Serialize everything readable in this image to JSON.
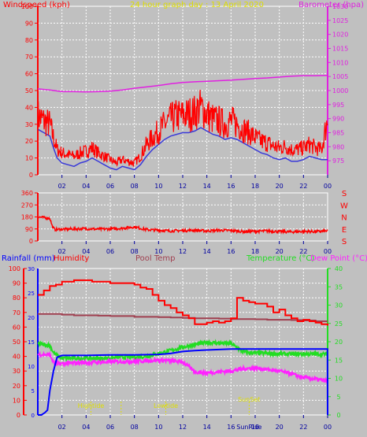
{
  "title": "24 hour graph day : 13 April 2020",
  "colors": {
    "background": "#c0c0c0",
    "windspeed": "#ff0000",
    "windgust": "#3a3ad8",
    "barometer": "#e020e0",
    "direction": "#ff0000",
    "humidity": "#ff0000",
    "pooltemp": "#a04050",
    "temperature": "#22dd22",
    "dewpoint": "#ff22ff",
    "rainfall": "#0000ff",
    "tide": "#e0e000"
  },
  "x_tick_labels": [
    "02",
    "04",
    "06",
    "08",
    "10",
    "12",
    "14",
    "16",
    "18",
    "20",
    "22",
    "00"
  ],
  "chart_data": [
    {
      "type": "line",
      "panel": "wind-barometer",
      "title": "24 hour graph day : 13 April 2020",
      "left_label": "Windspeed (kph)",
      "right_label": "Barometer (hpa)",
      "xlim": [
        0,
        24
      ],
      "ylim": [
        0,
        100
      ],
      "y2lim": [
        970,
        1030
      ],
      "yticks": [
        0,
        10,
        20,
        30,
        40,
        50,
        60,
        70,
        80,
        90,
        100
      ],
      "y2ticks": [
        975,
        980,
        985,
        990,
        995,
        1000,
        1005,
        1010,
        1015,
        1020,
        1025,
        1030
      ],
      "grid": true,
      "series": [
        {
          "name": "Windspeed (kph)",
          "axis": "left",
          "style": "noisy",
          "x": [
            0.0,
            0.5,
            1.0,
            1.3,
            1.6,
            2.0,
            2.5,
            3.0,
            3.5,
            4.0,
            4.5,
            5.0,
            5.5,
            6.0,
            6.5,
            7.0,
            7.5,
            8.0,
            8.5,
            9.0,
            9.5,
            10.0,
            10.5,
            11.0,
            11.5,
            12.0,
            12.5,
            13.0,
            13.5,
            14.0,
            14.5,
            15.0,
            15.5,
            16.0,
            16.5,
            17.0,
            17.5,
            18.0,
            18.5,
            19.0,
            19.5,
            20.0,
            20.5,
            21.0,
            21.5,
            22.0,
            22.5,
            23.0,
            23.5,
            24.0
          ],
          "y": [
            35,
            32,
            30,
            22,
            15,
            13,
            12,
            11,
            13,
            14,
            16,
            13,
            11,
            9,
            7,
            9,
            8,
            7,
            11,
            18,
            22,
            26,
            30,
            33,
            35,
            35,
            36,
            37,
            40,
            36,
            33,
            32,
            30,
            32,
            30,
            27,
            25,
            22,
            20,
            19,
            17,
            16,
            17,
            15,
            15,
            16,
            18,
            16,
            15,
            33
          ]
        },
        {
          "name": "Wind gust",
          "axis": "left",
          "style": "smooth",
          "x": [
            0.0,
            0.5,
            1.0,
            1.3,
            1.6,
            2.0,
            2.5,
            3.0,
            3.5,
            4.0,
            4.5,
            5.0,
            5.5,
            6.0,
            6.5,
            7.0,
            7.5,
            8.0,
            8.5,
            9.0,
            9.5,
            10.0,
            10.5,
            11.0,
            11.5,
            12.0,
            12.5,
            13.0,
            13.5,
            14.0,
            14.5,
            15.0,
            15.5,
            16.0,
            16.5,
            17.0,
            17.5,
            18.0,
            18.5,
            19.0,
            19.5,
            20.0,
            20.5,
            21.0,
            21.5,
            22.0,
            22.5,
            23.0,
            23.5,
            24.0
          ],
          "y": [
            27,
            25,
            23,
            16,
            10,
            7,
            6,
            5,
            7,
            8,
            10,
            8,
            6,
            4,
            3,
            5,
            4,
            3,
            6,
            11,
            15,
            18,
            21,
            23,
            24,
            25,
            25,
            26,
            28,
            26,
            24,
            23,
            21,
            22,
            21,
            19,
            17,
            15,
            13,
            12,
            10,
            9,
            10,
            8,
            8,
            9,
            11,
            10,
            9,
            9
          ]
        },
        {
          "name": "Barometer (hpa)",
          "axis": "right",
          "style": "smooth",
          "x": [
            0,
            1,
            2,
            3,
            4,
            5,
            6,
            7,
            8,
            9,
            10,
            11,
            12,
            13,
            14,
            15,
            16,
            17,
            18,
            19,
            20,
            21,
            22,
            23,
            24
          ],
          "y": [
            1000.6,
            1000.2,
            999.6,
            999.6,
            999.5,
            999.6,
            999.8,
            1000.2,
            1000.8,
            1001.3,
            1001.8,
            1002.4,
            1002.9,
            1003.1,
            1003.3,
            1003.5,
            1003.7,
            1004.0,
            1004.3,
            1004.5,
            1004.8,
            1005.1,
            1005.3,
            1005.3,
            1005.4
          ]
        }
      ]
    },
    {
      "type": "scatter",
      "panel": "wind-direction",
      "xlim": [
        0,
        24
      ],
      "ylim": [
        0,
        360
      ],
      "yticks": [
        0,
        90,
        180,
        270,
        360
      ],
      "right_tick_labels": [
        "S",
        "E",
        "N",
        "W",
        "S"
      ],
      "grid": true,
      "series": [
        {
          "name": "Wind direction",
          "style": "noisy",
          "x": [
            0.0,
            0.5,
            1.0,
            1.2,
            1.4,
            2,
            3,
            4,
            5,
            6,
            7,
            8,
            9,
            10,
            11,
            12,
            13,
            14,
            15,
            16,
            17,
            18,
            19,
            20,
            21,
            22,
            23,
            24
          ],
          "y": [
            180,
            175,
            170,
            110,
            85,
            88,
            90,
            92,
            88,
            90,
            95,
            105,
            85,
            80,
            75,
            78,
            80,
            75,
            80,
            78,
            70,
            72,
            75,
            70,
            68,
            72,
            70,
            75
          ]
        }
      ]
    },
    {
      "type": "line",
      "panel": "humidity-temperature-rain",
      "legend": [
        "Rainfall (mm)",
        "Humidity",
        "Pool Temp",
        "Temperature (°C)",
        "Dew Point (°C)"
      ],
      "xlim": [
        0,
        24
      ],
      "humidity_ylim": [
        0,
        100
      ],
      "humidity_yticks": [
        0,
        10,
        20,
        30,
        40,
        50,
        60,
        70,
        80,
        90,
        100
      ],
      "rain_ylim": [
        0,
        30
      ],
      "rain_yticks": [
        0,
        5,
        10,
        15,
        20,
        25,
        30
      ],
      "temp_ylim": [
        0,
        40
      ],
      "temp_yticks": [
        0,
        5,
        10,
        15,
        20,
        25,
        30,
        35,
        40
      ],
      "grid": true,
      "series": [
        {
          "name": "Humidity",
          "axis": "humidity",
          "style": "step",
          "x": [
            0.0,
            0.5,
            1.0,
            1.5,
            2.0,
            2.5,
            3.0,
            3.5,
            4.0,
            4.5,
            5.0,
            5.5,
            6.0,
            6.5,
            7.0,
            7.5,
            8.0,
            8.5,
            9.0,
            9.5,
            10.0,
            10.5,
            11.0,
            11.5,
            12.0,
            12.5,
            13.0,
            13.5,
            14.0,
            14.5,
            15.0,
            15.5,
            16.0,
            16.5,
            17.0,
            17.5,
            18.0,
            18.5,
            19.0,
            19.5,
            20.0,
            20.5,
            21.0,
            21.5,
            22.0,
            22.5,
            23.0,
            23.5,
            24.0
          ],
          "y": [
            82,
            85,
            88,
            89,
            91,
            91,
            92,
            92,
            92,
            91,
            91,
            91,
            90,
            90,
            90,
            90,
            89,
            87,
            86,
            82,
            78,
            75,
            73,
            70,
            68,
            66,
            62,
            62,
            63,
            64,
            63,
            64,
            66,
            80,
            78,
            77,
            76,
            76,
            74,
            70,
            72,
            68,
            66,
            64,
            65,
            64,
            63,
            62,
            61
          ]
        },
        {
          "name": "Pool Temp",
          "axis": "humidity",
          "style": "step",
          "x": [
            0,
            1,
            2,
            3,
            4,
            5,
            6,
            7,
            8,
            9,
            10,
            11,
            12,
            13,
            14,
            15,
            16,
            17,
            18,
            19,
            20,
            21,
            22,
            23,
            24
          ],
          "y": [
            69,
            69,
            68.5,
            68,
            68,
            67.8,
            67.5,
            67.5,
            67,
            67,
            66.8,
            66.5,
            66.3,
            66,
            66,
            65.8,
            65.5,
            65.5,
            65.3,
            65,
            65,
            64.8,
            64.5,
            64,
            64
          ]
        },
        {
          "name": "Temperature (°C)",
          "axis": "temperature",
          "style": "noisy",
          "x": [
            0.0,
            0.5,
            1.0,
            1.3,
            1.6,
            2,
            3,
            4,
            5,
            6,
            7,
            8,
            9,
            10,
            11,
            12,
            13,
            14,
            15,
            16,
            17,
            18,
            19,
            20,
            21,
            22,
            23,
            24
          ],
          "y": [
            19.5,
            19.2,
            19,
            17,
            16.2,
            15.5,
            15.5,
            15.5,
            15.4,
            15.6,
            15.8,
            15.8,
            16,
            16.8,
            17.6,
            18.5,
            19.2,
            19.8,
            19.6,
            19.5,
            17.2,
            16.9,
            16.8,
            16.7,
            16.6,
            16.7,
            16.6,
            16.6
          ]
        },
        {
          "name": "Dew Point (°C)",
          "axis": "temperature",
          "style": "noisy",
          "x": [
            0.0,
            0.5,
            1.0,
            1.3,
            1.6,
            2,
            3,
            4,
            5,
            6,
            7,
            8,
            9,
            10,
            11,
            12,
            13,
            14,
            15,
            16,
            17,
            18,
            19,
            20,
            21,
            22,
            23,
            24
          ],
          "y": [
            16.5,
            16.5,
            16.4,
            14.5,
            14.0,
            14.0,
            14.2,
            14.3,
            14.4,
            14.5,
            14.6,
            14.6,
            14.8,
            15.0,
            14.8,
            14.5,
            11.8,
            11.5,
            11.8,
            12.0,
            12.6,
            12.8,
            12.4,
            12.0,
            11.2,
            10.2,
            9.8,
            9.2
          ]
        },
        {
          "name": "Rainfall (mm)",
          "axis": "rain",
          "style": "line",
          "x": [
            0.0,
            0.3,
            0.6,
            0.8,
            1.0,
            1.3,
            1.6,
            2.0,
            4.0,
            6.0,
            8.0,
            10.0,
            11.0,
            12.0,
            13.0,
            14.0,
            16.0,
            18.0,
            20.0,
            22.0,
            23.0,
            23.99,
            24.0
          ],
          "y": [
            0,
            0,
            0.5,
            1,
            5,
            9,
            11.8,
            12.2,
            12.2,
            12.3,
            12.3,
            12.4,
            12.6,
            13.0,
            13.2,
            13.3,
            13.5,
            13.5,
            13.5,
            13.5,
            13.5,
            13.5,
            0
          ]
        }
      ],
      "annotations": [
        {
          "text": "Hightide",
          "x": 4.4
        },
        {
          "text": "Lowtide",
          "x": 10.6
        },
        {
          "text": "SunSet",
          "x": 17.5
        },
        {
          "text": "SunRise",
          "x": 17.5
        }
      ],
      "tide_markers_x": [
        4.4,
        6.9,
        10.6,
        17.5
      ]
    }
  ]
}
